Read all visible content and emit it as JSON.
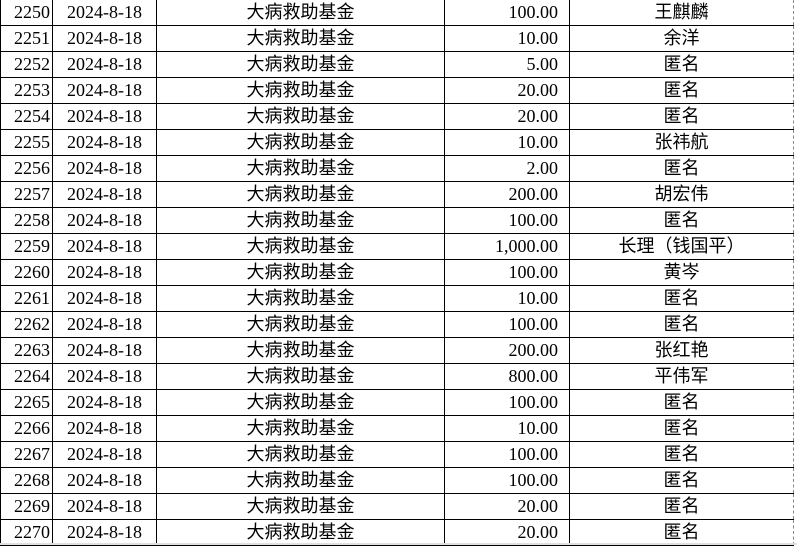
{
  "rows": [
    {
      "id": "2250",
      "date": "2024-8-18",
      "fund": "大病救助基金",
      "amount": "100.00",
      "donor": "王麒麟"
    },
    {
      "id": "2251",
      "date": "2024-8-18",
      "fund": "大病救助基金",
      "amount": "10.00",
      "donor": "余洋"
    },
    {
      "id": "2252",
      "date": "2024-8-18",
      "fund": "大病救助基金",
      "amount": "5.00",
      "donor": "匿名"
    },
    {
      "id": "2253",
      "date": "2024-8-18",
      "fund": "大病救助基金",
      "amount": "20.00",
      "donor": "匿名"
    },
    {
      "id": "2254",
      "date": "2024-8-18",
      "fund": "大病救助基金",
      "amount": "20.00",
      "donor": "匿名"
    },
    {
      "id": "2255",
      "date": "2024-8-18",
      "fund": "大病救助基金",
      "amount": "10.00",
      "donor": "张祎航"
    },
    {
      "id": "2256",
      "date": "2024-8-18",
      "fund": "大病救助基金",
      "amount": "2.00",
      "donor": "匿名"
    },
    {
      "id": "2257",
      "date": "2024-8-18",
      "fund": "大病救助基金",
      "amount": "200.00",
      "donor": "胡宏伟"
    },
    {
      "id": "2258",
      "date": "2024-8-18",
      "fund": "大病救助基金",
      "amount": "100.00",
      "donor": "匿名"
    },
    {
      "id": "2259",
      "date": "2024-8-18",
      "fund": "大病救助基金",
      "amount": "1,000.00",
      "donor": "长理（钱国平）"
    },
    {
      "id": "2260",
      "date": "2024-8-18",
      "fund": "大病救助基金",
      "amount": "100.00",
      "donor": "黄岑"
    },
    {
      "id": "2261",
      "date": "2024-8-18",
      "fund": "大病救助基金",
      "amount": "10.00",
      "donor": "匿名"
    },
    {
      "id": "2262",
      "date": "2024-8-18",
      "fund": "大病救助基金",
      "amount": "100.00",
      "donor": "匿名"
    },
    {
      "id": "2263",
      "date": "2024-8-18",
      "fund": "大病救助基金",
      "amount": "200.00",
      "donor": "张红艳"
    },
    {
      "id": "2264",
      "date": "2024-8-18",
      "fund": "大病救助基金",
      "amount": "800.00",
      "donor": "平伟军"
    },
    {
      "id": "2265",
      "date": "2024-8-18",
      "fund": "大病救助基金",
      "amount": "100.00",
      "donor": "匿名"
    },
    {
      "id": "2266",
      "date": "2024-8-18",
      "fund": "大病救助基金",
      "amount": "10.00",
      "donor": "匿名"
    },
    {
      "id": "2267",
      "date": "2024-8-18",
      "fund": "大病救助基金",
      "amount": "100.00",
      "donor": "匿名"
    },
    {
      "id": "2268",
      "date": "2024-8-18",
      "fund": "大病救助基金",
      "amount": "100.00",
      "donor": "匿名"
    },
    {
      "id": "2269",
      "date": "2024-8-18",
      "fund": "大病救助基金",
      "amount": "20.00",
      "donor": "匿名"
    },
    {
      "id": "2270",
      "date": "2024-8-18",
      "fund": "大病救助基金",
      "amount": "20.00",
      "donor": "匿名"
    }
  ]
}
